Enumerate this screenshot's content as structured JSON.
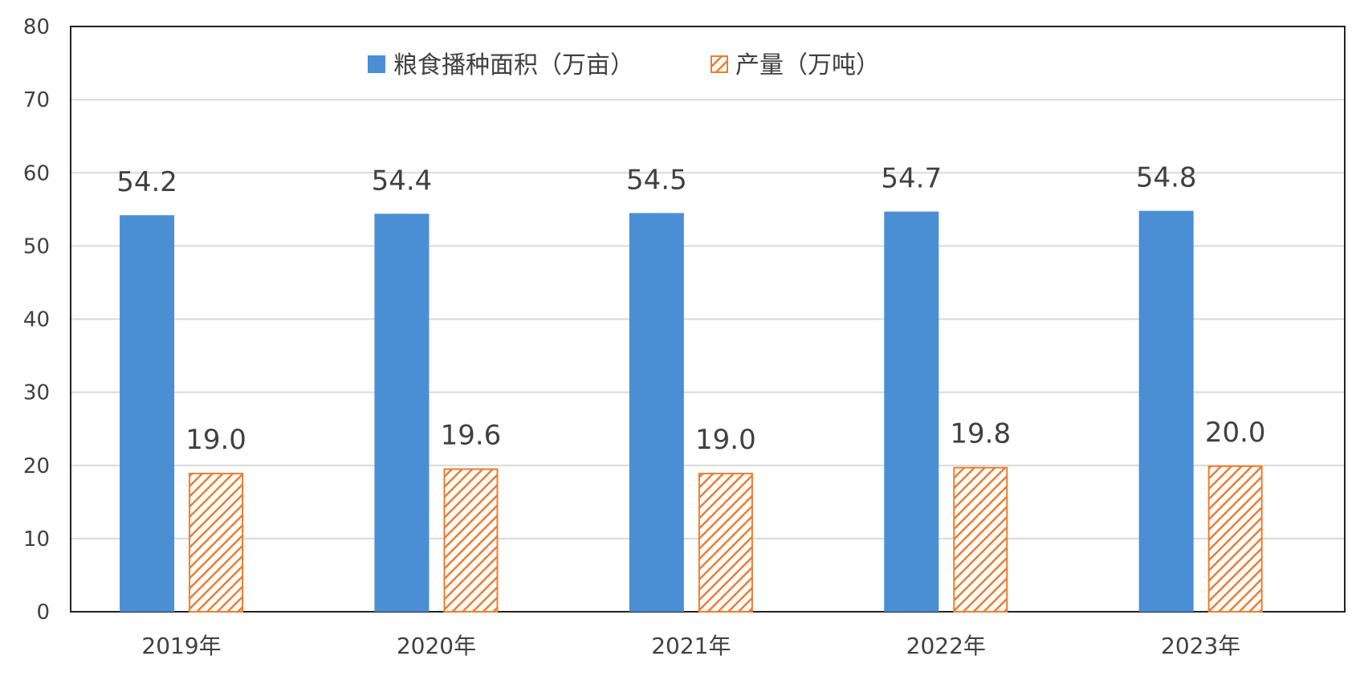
{
  "chart_data": {
    "type": "bar",
    "categories": [
      "2019年",
      "2020年",
      "2021年",
      "2022年",
      "2023年"
    ],
    "series": [
      {
        "name": "粮食播种面积（万亩）",
        "values": [
          54.2,
          54.4,
          54.5,
          54.7,
          54.8
        ],
        "color": "#4a8fd4"
      },
      {
        "name": "产量（万吨）",
        "values": [
          19.0,
          19.6,
          19.0,
          19.8,
          20.0
        ],
        "color": "#ed7d31"
      }
    ],
    "ylim": [
      0,
      80
    ],
    "yticks": [
      0,
      10,
      20,
      30,
      40,
      50,
      60,
      70,
      80
    ],
    "grid": true,
    "legend": "top-center"
  }
}
